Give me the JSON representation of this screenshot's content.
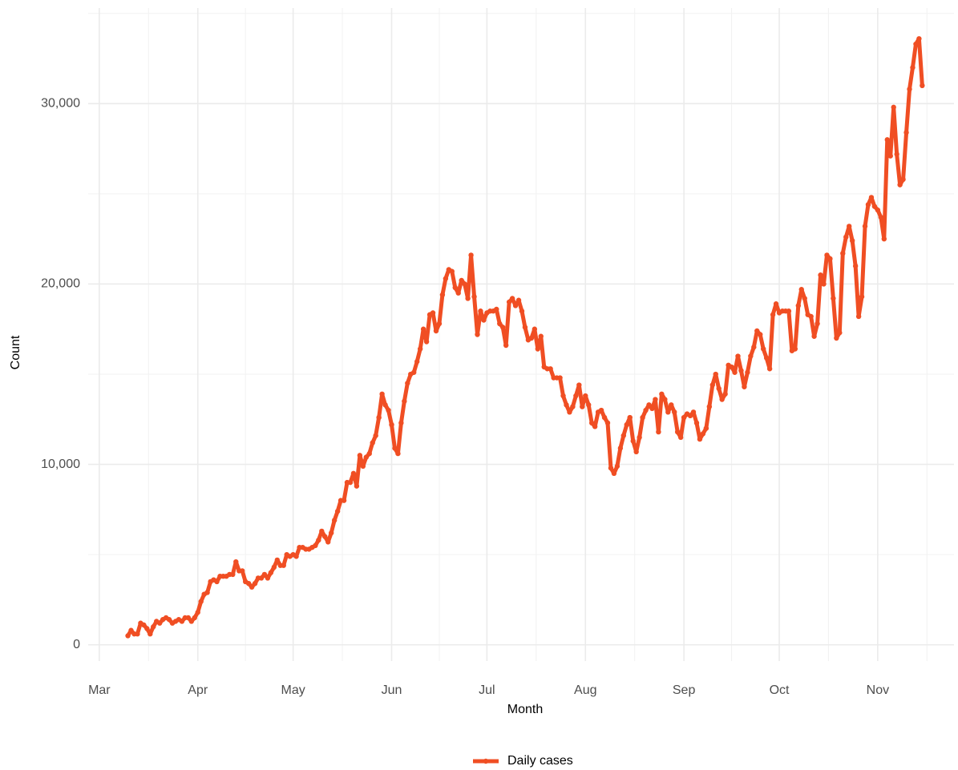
{
  "chart_data": {
    "type": "line",
    "x_label": "Month",
    "y_label": "Count",
    "x": [
      9,
      10,
      11,
      12,
      13,
      14,
      15,
      16,
      17,
      18,
      19,
      20,
      21,
      22,
      23,
      24,
      25,
      26,
      27,
      28,
      29,
      30,
      31,
      32,
      33,
      34,
      35,
      36,
      37,
      38,
      39,
      40,
      41,
      42,
      43,
      44,
      45,
      46,
      47,
      48,
      49,
      50,
      51,
      52,
      53,
      54,
      55,
      56,
      57,
      58,
      59,
      60,
      61,
      62,
      63,
      64,
      65,
      66,
      67,
      68,
      69,
      70,
      71,
      72,
      73,
      74,
      75,
      76,
      77,
      78,
      79,
      80,
      81,
      82,
      83,
      84,
      85,
      86,
      87,
      88,
      89,
      90,
      91,
      92,
      93,
      94,
      95,
      96,
      97,
      98,
      99,
      100,
      101,
      102,
      103,
      104,
      105,
      106,
      107,
      108,
      109,
      110,
      111,
      112,
      113,
      114,
      115,
      116,
      117,
      118,
      119,
      120,
      121,
      122,
      123,
      124,
      125,
      126,
      127,
      128,
      129,
      130,
      131,
      132,
      133,
      134,
      135,
      136,
      137,
      138,
      139,
      140,
      141,
      142,
      143,
      144,
      145,
      146,
      147,
      148,
      149,
      150,
      151,
      152,
      153,
      154,
      155,
      156,
      157,
      158,
      159,
      160,
      161,
      162,
      163,
      164,
      165,
      166,
      167,
      168,
      169,
      170,
      171,
      172,
      173,
      174,
      175,
      176,
      177,
      178,
      179,
      180,
      181,
      182,
      183,
      184,
      185,
      186,
      187,
      188,
      189,
      190,
      191,
      192,
      193,
      194,
      195,
      196,
      197,
      198,
      199,
      200,
      201,
      202,
      203,
      204,
      205,
      206,
      207,
      208,
      209,
      210,
      211,
      212,
      213,
      214,
      215,
      216,
      217,
      218,
      219,
      220,
      221,
      222,
      223,
      224,
      225,
      226,
      227,
      228,
      229,
      230,
      231,
      232,
      233,
      234,
      235,
      236,
      237,
      238,
      239,
      240,
      241,
      242,
      243,
      244,
      245,
      246,
      247,
      248,
      249,
      250,
      251,
      252,
      253,
      254,
      255,
      256,
      257,
      258,
      259
    ],
    "series": [
      {
        "name": "Daily cases",
        "color": "#f04e23",
        "values": [
          500,
          800,
          600,
          600,
          1200,
          1100,
          900,
          600,
          1000,
          1300,
          1200,
          1400,
          1500,
          1400,
          1200,
          1300,
          1400,
          1300,
          1500,
          1500,
          1300,
          1500,
          1800,
          2400,
          2800,
          2900,
          3500,
          3600,
          3500,
          3800,
          3800,
          3800,
          3900,
          3900,
          4600,
          4100,
          4100,
          3500,
          3400,
          3200,
          3400,
          3700,
          3700,
          3900,
          3700,
          4000,
          4300,
          4700,
          4400,
          4400,
          5000,
          4900,
          5000,
          4900,
          5400,
          5400,
          5300,
          5300,
          5400,
          5500,
          5800,
          6300,
          6000,
          5700,
          6200,
          6900,
          7400,
          8000,
          8000,
          9000,
          9000,
          9500,
          8800,
          10500,
          9900,
          10400,
          10600,
          11200,
          11600,
          12600,
          13900,
          13300,
          13000,
          12200,
          10900,
          10600,
          12300,
          13500,
          14500,
          15000,
          15100,
          15700,
          16400,
          17500,
          16800,
          18300,
          18400,
          17400,
          17800,
          19400,
          20300,
          20800,
          20700,
          19800,
          19500,
          20200,
          20000,
          19200,
          21600,
          19300,
          17200,
          18500,
          18000,
          18400,
          18500,
          18500,
          18600,
          17800,
          17600,
          16600,
          19000,
          19200,
          18800,
          19100,
          18500,
          17600,
          16900,
          17000,
          17500,
          16400,
          17100,
          15400,
          15300,
          15300,
          14800,
          14800,
          14800,
          13800,
          13300,
          12900,
          13200,
          13800,
          14400,
          13200,
          13800,
          13300,
          12300,
          12100,
          12900,
          13000,
          12600,
          12300,
          9800,
          9500,
          9900,
          10900,
          11600,
          12200,
          12600,
          11300,
          10700,
          11500,
          12600,
          13000,
          13300,
          13100,
          13600,
          11800,
          13900,
          13600,
          12900,
          13300,
          12900,
          11800,
          11500,
          12600,
          12800,
          12700,
          12900,
          12300,
          11400,
          11700,
          12000,
          13200,
          14400,
          15000,
          14200,
          13600,
          13900,
          15500,
          15400,
          15100,
          16000,
          15200,
          14300,
          15100,
          16000,
          16500,
          17400,
          17200,
          16400,
          15900,
          15300,
          18300,
          18900,
          18400,
          18500,
          18500,
          18500,
          16300,
          16400,
          18800,
          19700,
          19200,
          18300,
          18200,
          17100,
          17800,
          20500,
          20000,
          21600,
          21400,
          19200,
          17000,
          17300,
          21700,
          22600,
          23200,
          22400,
          21000,
          18200,
          19300,
          23200,
          24400,
          24800,
          24300,
          24100,
          23700,
          22500,
          28000,
          27100,
          29800,
          27200,
          25500,
          25800,
          28400,
          30800,
          32000,
          33300,
          33600,
          31000
        ]
      }
    ],
    "xlim": [
      -3.5,
      269
    ],
    "xticks": [
      {
        "value": 0,
        "label": "Mar"
      },
      {
        "value": 31,
        "label": "Apr"
      },
      {
        "value": 61,
        "label": "May"
      },
      {
        "value": 92,
        "label": "Jun"
      },
      {
        "value": 122,
        "label": "Jul"
      },
      {
        "value": 153,
        "label": "Aug"
      },
      {
        "value": 184,
        "label": "Sep"
      },
      {
        "value": 214,
        "label": "Oct"
      },
      {
        "value": 245,
        "label": "Nov"
      }
    ],
    "ylim": [
      -900,
      35300
    ],
    "yticks": [
      0,
      {
        "value": 10000,
        "label": "10,000"
      },
      {
        "value": 20000,
        "label": "20,000"
      },
      {
        "value": 30000,
        "label": "30,000"
      }
    ],
    "grid": true,
    "legend": "bottom"
  }
}
